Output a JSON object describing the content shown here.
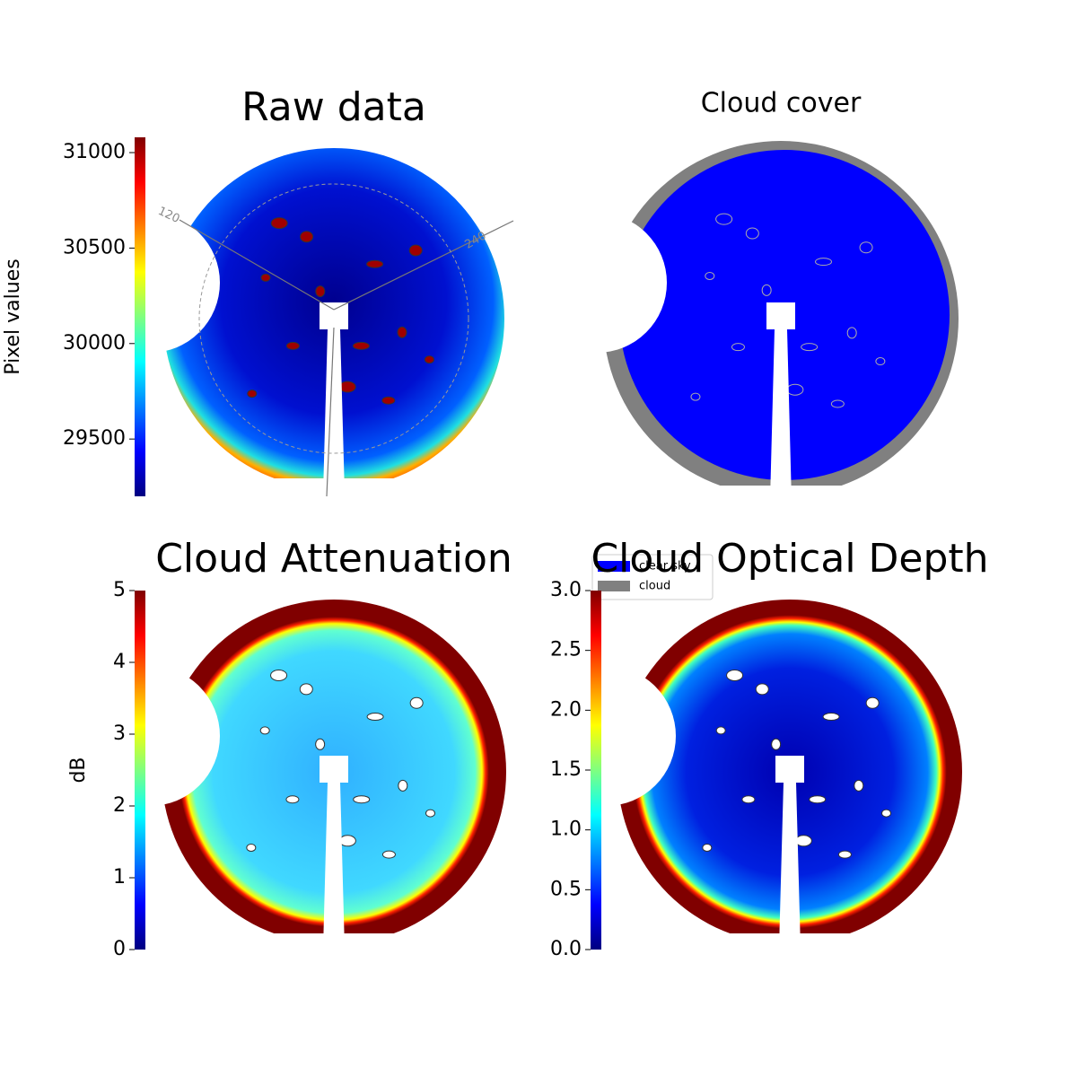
{
  "chart_data": [
    {
      "type": "image",
      "title": "Raw data",
      "colorbar_label": "Pixel values",
      "ylim": [
        29200,
        31080
      ],
      "yticks": [
        29500,
        30000,
        30500,
        31000
      ],
      "annotations": [
        "120",
        "240"
      ]
    },
    {
      "type": "image",
      "title": "Cloud cover",
      "series": [
        {
          "name": "clear sky",
          "color": "#0000ff"
        },
        {
          "name": "cloud",
          "color": "#808080"
        }
      ]
    },
    {
      "type": "image",
      "title": "Cloud Attenuation",
      "colorbar_label": "dB",
      "ylim": [
        0,
        5
      ],
      "yticks": [
        0,
        1,
        2,
        3,
        4,
        5
      ]
    },
    {
      "type": "image",
      "title": "Cloud Optical Depth",
      "ylim": [
        0,
        3
      ],
      "yticks": [
        {
          "value": 0,
          "label": "0.0"
        },
        {
          "value": 0.5,
          "label": "0.5"
        },
        {
          "value": 1,
          "label": "1.0"
        },
        {
          "value": 1.5,
          "label": "1.5"
        },
        {
          "value": 2,
          "label": "2.0"
        },
        {
          "value": 2.5,
          "label": "2.5"
        },
        {
          "value": 3,
          "label": "3.0"
        }
      ]
    }
  ]
}
